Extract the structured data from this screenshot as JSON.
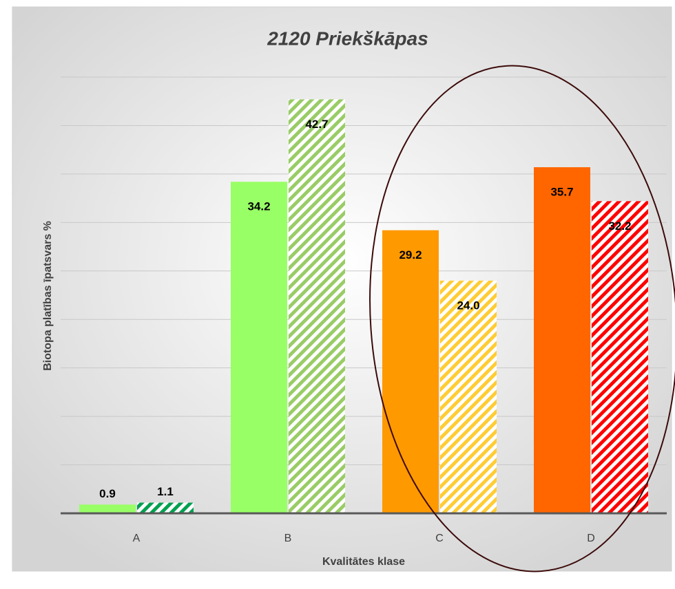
{
  "chart_data": {
    "type": "bar",
    "title": "2120 Priekškāpas",
    "x_label": "Kvalitātes klase",
    "y_label": "Biotopa platības īpatsvars %",
    "categories": [
      "A",
      "B",
      "C",
      "D"
    ],
    "series": [
      {
        "values": [
          0.9,
          34.2,
          29.2,
          35.7
        ],
        "colors": [
          "#99ff66",
          "#99ff66",
          "#ff9900",
          "#ff6600"
        ],
        "pattern": "solid"
      },
      {
        "values": [
          1.1,
          42.7,
          24.0,
          32.2
        ],
        "value_labels": [
          "1.1",
          "42.7",
          "24.0",
          "32.2"
        ],
        "colors": [
          "#00a050",
          "#99cc66",
          "#ffcc33",
          "#ff0000"
        ],
        "pattern": "hatch"
      }
    ],
    "ylim": [
      0,
      45
    ],
    "yticks": [
      0,
      5,
      10,
      15,
      20,
      25,
      30,
      35,
      40,
      45
    ],
    "grid": true
  }
}
